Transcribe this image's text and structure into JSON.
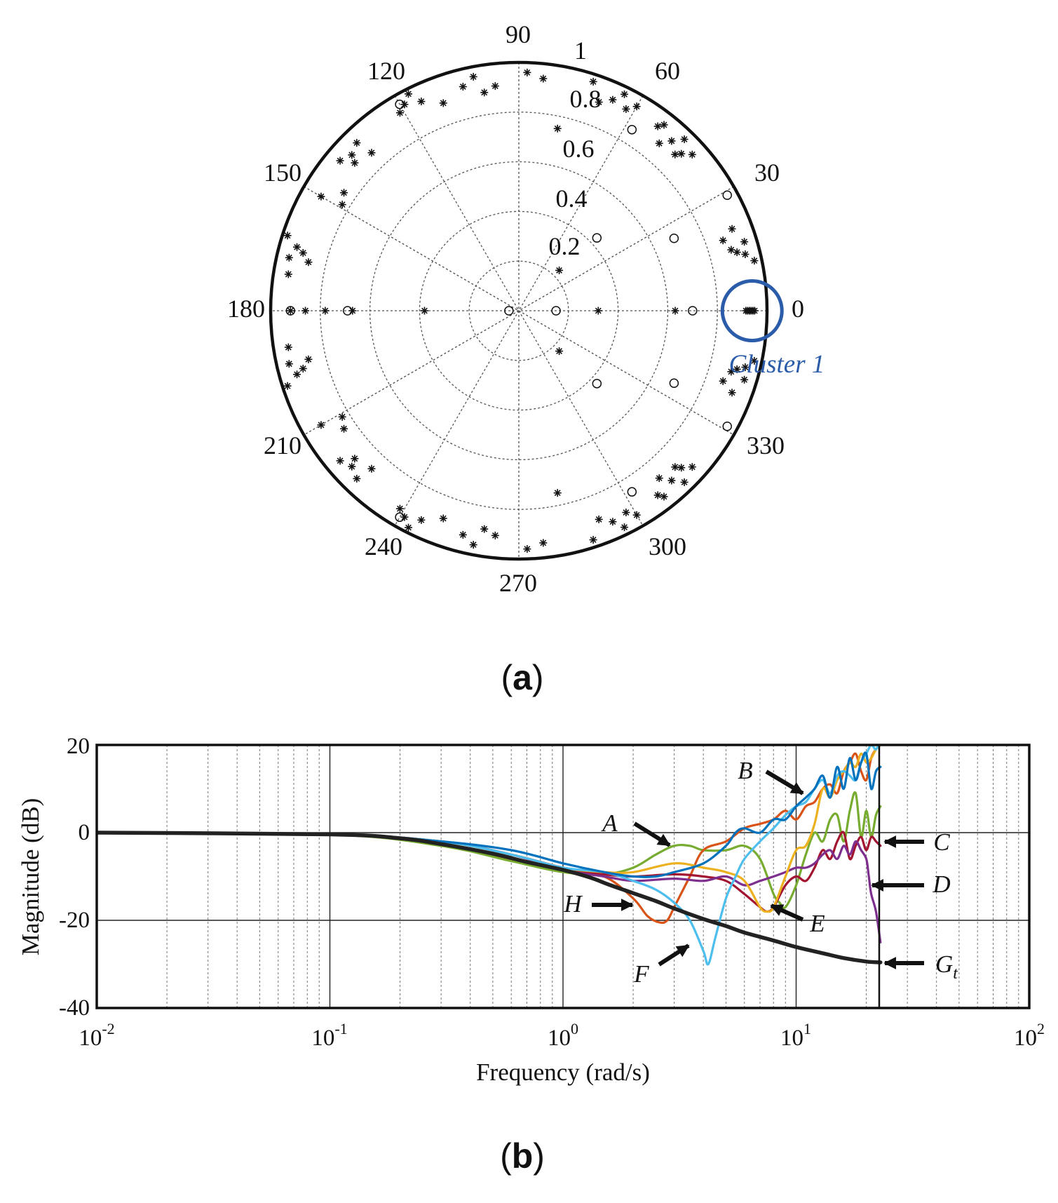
{
  "chart_data": [
    {
      "id": "a",
      "type": "polar-scatter",
      "panel_label": "a",
      "radial_ticks": [
        "0.2",
        "0.4",
        "0.6",
        "0.8",
        "1"
      ],
      "radial_max": 1,
      "angle_ticks": [
        "0",
        "30",
        "60",
        "90",
        "120",
        "150",
        "180",
        "210",
        "240",
        "270",
        "300",
        "330"
      ],
      "annotation": "Cluster 1",
      "annotation_color": "#2a5caa",
      "annotation_circle": {
        "r": 0.94,
        "theta": 0,
        "radius": 0.12
      },
      "star_markers": [
        [
          0.95,
          0
        ],
        [
          0.943,
          0
        ],
        [
          0.936,
          0
        ],
        [
          0.929,
          0
        ],
        [
          0.922,
          0
        ],
        [
          0.915,
          0
        ],
        [
          0.92,
          180
        ],
        [
          0.86,
          180
        ],
        [
          0.78,
          180
        ],
        [
          0.67,
          180
        ],
        [
          0.38,
          180
        ],
        [
          0.32,
          0
        ],
        [
          0.63,
          0
        ],
        [
          0.97,
          12
        ],
        [
          0.94,
          14
        ],
        [
          0.91,
          15
        ],
        [
          0.89,
          16
        ],
        [
          0.95,
          17
        ],
        [
          0.87,
          19
        ],
        [
          0.92,
          21
        ],
        [
          0.97,
          -12
        ],
        [
          0.94,
          -14
        ],
        [
          0.91,
          -15
        ],
        [
          0.89,
          -16
        ],
        [
          0.95,
          -17
        ],
        [
          0.87,
          -19
        ],
        [
          0.92,
          -21
        ],
        [
          0.94,
          42
        ],
        [
          0.91,
          44
        ],
        [
          0.89,
          45
        ],
        [
          0.96,
          46
        ],
        [
          0.92,
          48
        ],
        [
          0.88,
          50
        ],
        [
          0.95,
          52
        ],
        [
          0.93,
          53
        ],
        [
          0.94,
          -42
        ],
        [
          0.91,
          -44
        ],
        [
          0.89,
          -45
        ],
        [
          0.96,
          -46
        ],
        [
          0.92,
          -48
        ],
        [
          0.88,
          -50
        ],
        [
          0.95,
          -52
        ],
        [
          0.93,
          -53
        ],
        [
          0.95,
          60
        ],
        [
          0.92,
          62
        ],
        [
          0.97,
          64
        ],
        [
          0.93,
          66
        ],
        [
          0.9,
          69
        ],
        [
          0.97,
          72
        ],
        [
          0.75,
          78
        ],
        [
          0.94,
          84
        ],
        [
          0.96,
          88
        ],
        [
          0.95,
          -60
        ],
        [
          0.92,
          -62
        ],
        [
          0.97,
          -64
        ],
        [
          0.93,
          -66
        ],
        [
          0.9,
          -69
        ],
        [
          0.97,
          -72
        ],
        [
          0.75,
          -78
        ],
        [
          0.94,
          -84
        ],
        [
          0.96,
          -88
        ],
        [
          0.91,
          96
        ],
        [
          0.89,
          99
        ],
        [
          0.96,
          101
        ],
        [
          0.93,
          104
        ],
        [
          0.89,
          110
        ],
        [
          0.93,
          115
        ],
        [
          0.98,
          117
        ],
        [
          0.95,
          119
        ],
        [
          0.93,
          121
        ],
        [
          0.91,
          -96
        ],
        [
          0.89,
          -99
        ],
        [
          0.96,
          -101
        ],
        [
          0.93,
          -104
        ],
        [
          0.89,
          -110
        ],
        [
          0.93,
          -115
        ],
        [
          0.98,
          -117
        ],
        [
          0.95,
          -119
        ],
        [
          0.93,
          -121
        ],
        [
          0.87,
          133
        ],
        [
          0.94,
          134
        ],
        [
          0.92,
          137
        ],
        [
          0.89,
          138
        ],
        [
          0.94,
          140
        ],
        [
          0.85,
          146
        ],
        [
          0.92,
          150
        ],
        [
          0.83,
          149
        ],
        [
          0.87,
          -133
        ],
        [
          0.94,
          -134
        ],
        [
          0.92,
          -137
        ],
        [
          0.89,
          -138
        ],
        [
          0.94,
          -140
        ],
        [
          0.85,
          -146
        ],
        [
          0.92,
          -150
        ],
        [
          0.83,
          -149
        ],
        [
          0.98,
          162
        ],
        [
          0.93,
          164
        ],
        [
          0.9,
          165
        ],
        [
          0.87,
          167
        ],
        [
          0.95,
          167
        ],
        [
          0.94,
          171
        ],
        [
          0.98,
          -162
        ],
        [
          0.93,
          -164
        ],
        [
          0.9,
          -165
        ],
        [
          0.87,
          -167
        ],
        [
          0.95,
          -167
        ],
        [
          0.94,
          -171
        ],
        [
          0.23,
          45
        ],
        [
          0.23,
          -45
        ]
      ],
      "circle_markers": [
        [
          0.92,
          180
        ],
        [
          0.69,
          180
        ],
        [
          0.04,
          180
        ],
        [
          0.15,
          0
        ],
        [
          0.7,
          0
        ],
        [
          0.96,
          120
        ],
        [
          0.96,
          -120
        ],
        [
          0.86,
          58
        ],
        [
          0.86,
          -58
        ],
        [
          0.96,
          29
        ],
        [
          0.96,
          -29
        ],
        [
          0.43,
          43
        ],
        [
          0.43,
          -43
        ],
        [
          0.69,
          25
        ],
        [
          0.69,
          -25
        ]
      ]
    },
    {
      "id": "b",
      "type": "line",
      "panel_label": "b",
      "xscale": "log",
      "xlim": [
        0.01,
        100
      ],
      "ylim": [
        -40,
        20
      ],
      "xlabel": "Frequency  (rad/s)",
      "ylabel": "Magnitude (dB)",
      "x_tick_labels": [
        {
          "base": "10",
          "exp": "-2",
          "value": 0.01
        },
        {
          "base": "10",
          "exp": "-1",
          "value": 0.1
        },
        {
          "base": "10",
          "exp": "0",
          "value": 1
        },
        {
          "base": "10",
          "exp": "1",
          "value": 10
        },
        {
          "base": "10",
          "exp": "2",
          "value": 100
        }
      ],
      "y_tick_labels": [
        "20",
        "0",
        "-20",
        "-40"
      ],
      "y_tick_values": [
        20,
        0,
        -20,
        -40
      ],
      "series": [
        {
          "name": "A",
          "color": "#77ac30",
          "x": [
            0.01,
            0.1,
            0.3,
            0.6,
            1.0,
            1.5,
            2.0,
            2.5,
            3.0,
            3.5,
            4.0,
            5.0,
            6.0,
            7.0,
            8.0,
            8.5,
            9.0,
            10,
            11,
            12,
            13,
            14,
            15,
            16,
            17,
            18,
            19,
            20,
            21,
            22,
            23
          ],
          "y": [
            0,
            -0.4,
            -3,
            -6.5,
            -9,
            -9.5,
            -8,
            -5,
            -3,
            -3,
            -4,
            -4,
            -3,
            -6,
            -14,
            -16,
            -17,
            -12,
            -5,
            0,
            -2,
            3,
            4,
            -2,
            5,
            9,
            -1,
            5,
            -1,
            4,
            6
          ]
        },
        {
          "name": "B",
          "color": "#0072bd",
          "x": [
            0.01,
            0.1,
            0.3,
            0.6,
            1.0,
            1.5,
            2.0,
            2.5,
            3.0,
            4.0,
            5.0,
            5.5,
            6.0,
            7.0,
            8.0,
            9.0,
            10,
            11,
            12,
            13,
            14,
            15,
            16,
            17,
            18,
            19,
            20,
            21,
            22,
            23
          ],
          "y": [
            0,
            -0.4,
            -2,
            -4,
            -7,
            -9,
            -10,
            -10,
            -9,
            -7,
            -3,
            0,
            1,
            0,
            3,
            3,
            6,
            8,
            10,
            13,
            8,
            15,
            10,
            17,
            12,
            16,
            18,
            10,
            14,
            15
          ]
        },
        {
          "name": "C",
          "color": "#a2142f",
          "x": [
            0.01,
            0.1,
            0.3,
            0.6,
            1.0,
            1.5,
            2.0,
            3.0,
            4.0,
            5.0,
            6.0,
            7.0,
            7.5,
            8.0,
            9.0,
            10,
            11,
            12,
            13,
            14,
            15,
            16,
            17,
            18,
            19,
            20,
            21,
            22,
            23
          ],
          "y": [
            0,
            -0.4,
            -2,
            -5,
            -8,
            -9.5,
            -10,
            -9.5,
            -10,
            -11,
            -14,
            -17,
            -18,
            -17,
            -12,
            -10,
            -11,
            -8,
            -4,
            -6,
            -2,
            0,
            -6,
            -3,
            -1,
            -4,
            -1,
            -2,
            -3
          ]
        },
        {
          "name": "D",
          "color": "#7e2f8e",
          "x": [
            0.01,
            0.1,
            0.3,
            0.6,
            1.0,
            1.5,
            2.0,
            3.0,
            4.0,
            5.0,
            6.0,
            7.0,
            8.0,
            9.0,
            10,
            11,
            12,
            13,
            14,
            15,
            16,
            17,
            18,
            19,
            20,
            20.5,
            21,
            22,
            23
          ],
          "y": [
            0,
            -0.4,
            -2,
            -5,
            -8.5,
            -10,
            -11,
            -10.5,
            -11,
            -10,
            -12,
            -11,
            -10,
            -9,
            -8,
            -8,
            -7,
            -5,
            -4,
            -6,
            -3,
            -5,
            -2,
            -4,
            -6,
            -10,
            -14,
            -18,
            -25
          ]
        },
        {
          "name": "E",
          "color": "#edb120",
          "x": [
            0.01,
            0.1,
            0.3,
            0.6,
            1.0,
            1.5,
            2.0,
            3.0,
            4.0,
            5.0,
            6.0,
            7.0,
            7.5,
            8.0,
            9.0,
            10,
            11,
            12,
            13,
            14,
            15,
            16,
            17,
            18,
            19,
            20,
            21,
            22,
            23
          ],
          "y": [
            0,
            -0.4,
            -2,
            -5,
            -8,
            -9,
            -9,
            -7,
            -8,
            -9,
            -11,
            -17,
            -18,
            -17,
            -10,
            -4,
            -3,
            2,
            10,
            8,
            12,
            14,
            16,
            15,
            18,
            16,
            17,
            19,
            20
          ]
        },
        {
          "name": "F",
          "color": "#4dbeee",
          "x": [
            0.01,
            0.1,
            0.3,
            0.6,
            1.0,
            1.5,
            2.0,
            2.5,
            3.0,
            3.5,
            4.0,
            4.2,
            4.5,
            5.0,
            5.5,
            6.0,
            7.0,
            8.0,
            9.0,
            10,
            11,
            12,
            13,
            14,
            15,
            16,
            17,
            18,
            19,
            20,
            21,
            22,
            23
          ],
          "y": [
            0,
            -0.4,
            -2,
            -5,
            -8,
            -9,
            -11,
            -13,
            -16,
            -20,
            -27,
            -30,
            -24,
            -15,
            -10,
            -6,
            -2,
            1,
            4,
            6,
            7,
            10,
            12,
            9,
            13,
            14,
            13,
            12,
            16,
            18,
            20,
            19,
            21
          ]
        },
        {
          "name": "H",
          "color": "#d95319",
          "x": [
            0.01,
            0.1,
            0.3,
            0.6,
            1.0,
            1.5,
            2.0,
            2.3,
            2.6,
            2.8,
            3.0,
            3.5,
            4.0,
            5.0,
            6.0,
            7.0,
            8.0,
            9.0,
            10,
            11,
            12,
            13,
            14,
            15,
            16,
            17,
            18,
            19,
            20,
            21,
            22,
            23
          ],
          "y": [
            0,
            -0.4,
            -2.5,
            -6,
            -8.5,
            -10,
            -15,
            -19,
            -20.5,
            -20,
            -17,
            -10,
            -4,
            -2,
            1,
            2,
            3,
            5,
            3,
            6,
            7,
            10,
            11,
            9,
            14,
            16,
            18,
            14,
            12,
            17,
            19,
            20
          ]
        },
        {
          "name": "G_t",
          "color": "#222222",
          "thick": true,
          "x": [
            0.01,
            0.1,
            0.2,
            0.3,
            0.5,
            0.7,
            1.0,
            1.3,
            1.6,
            2.0,
            2.5,
            3.0,
            4.0,
            5.0,
            6.0,
            8.0,
            10,
            13,
            16,
            20,
            23
          ],
          "y": [
            0,
            -0.4,
            -1.3,
            -2.6,
            -4.8,
            -6.7,
            -8.5,
            -10.2,
            -12,
            -13.8,
            -15.6,
            -17.3,
            -19.7,
            -21.3,
            -22.8,
            -24.6,
            -26.1,
            -27.5,
            -28.6,
            -29.4,
            -29.6
          ]
        }
      ],
      "labels": [
        {
          "text": "A",
          "sub": "",
          "italic": true
        },
        {
          "text": "B",
          "sub": "",
          "italic": true
        },
        {
          "text": "C",
          "sub": "",
          "italic": true
        },
        {
          "text": "D",
          "sub": "",
          "italic": true
        },
        {
          "text": "E",
          "sub": "",
          "italic": true
        },
        {
          "text": "F",
          "sub": "",
          "italic": true
        },
        {
          "text": "H",
          "sub": "",
          "italic": true
        },
        {
          "text": "G",
          "sub": "t",
          "italic": true
        }
      ]
    }
  ]
}
